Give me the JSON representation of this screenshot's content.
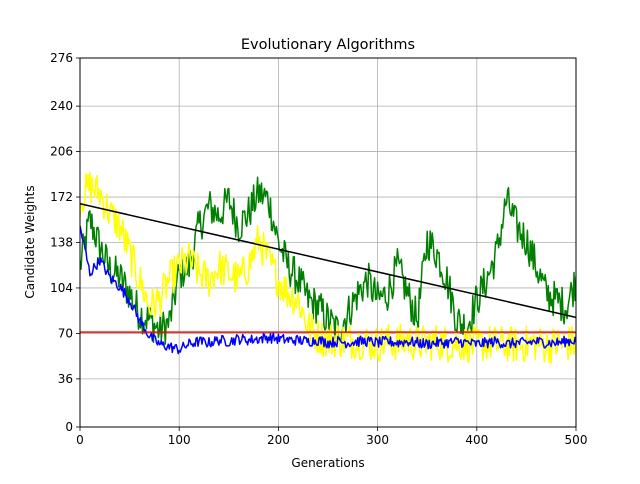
{
  "chart_data": {
    "type": "line",
    "title": "Evolutionary Algorithms",
    "xlabel": "Generations",
    "ylabel": "Candidate Weights",
    "xlim": [
      0,
      500
    ],
    "ylim": [
      0,
      276
    ],
    "xticks": [
      0,
      100,
      200,
      300,
      400,
      500
    ],
    "yticks": [
      0,
      36,
      70,
      104,
      138,
      172,
      206,
      240,
      276
    ],
    "grid": true,
    "series": [
      {
        "color": "#008000",
        "kind": "noisy",
        "x": [
          0,
          10,
          20,
          30,
          40,
          50,
          60,
          70,
          80,
          90,
          100,
          110,
          120,
          130,
          140,
          150,
          160,
          170,
          180,
          190,
          200,
          210,
          220,
          230,
          240,
          250,
          260,
          270,
          280,
          290,
          300,
          310,
          320,
          330,
          340,
          350,
          360,
          370,
          380,
          390,
          400,
          410,
          420,
          430,
          440,
          450,
          460,
          470,
          480,
          490,
          500
        ],
        "y": [
          120,
          155,
          135,
          118,
          112,
          100,
          85,
          80,
          72,
          78,
          115,
          120,
          150,
          165,
          158,
          170,
          150,
          160,
          175,
          170,
          138,
          120,
          110,
          95,
          90,
          80,
          72,
          85,
          100,
          110,
          95,
          100,
          120,
          100,
          80,
          140,
          130,
          110,
          80,
          75,
          95,
          110,
          130,
          170,
          150,
          140,
          120,
          100,
          95,
          90,
          110
        ]
      },
      {
        "color": "#ffff00",
        "kind": "noisy",
        "x": [
          0,
          10,
          20,
          30,
          40,
          50,
          60,
          70,
          80,
          90,
          100,
          110,
          120,
          130,
          140,
          150,
          160,
          170,
          180,
          190,
          200,
          210,
          220,
          230,
          240,
          250,
          260,
          270,
          280,
          290,
          300,
          310,
          320,
          330,
          340,
          350,
          360,
          370,
          380,
          390,
          400,
          410,
          420,
          430,
          440,
          450,
          460,
          470,
          480,
          490,
          500
        ],
        "y": [
          170,
          180,
          175,
          160,
          150,
          130,
          110,
          90,
          95,
          110,
          120,
          125,
          115,
          110,
          120,
          115,
          110,
          120,
          140,
          125,
          110,
          100,
          95,
          75,
          68,
          65,
          66,
          64,
          65,
          63,
          62,
          64,
          63,
          65,
          62,
          63,
          64,
          62,
          63,
          62,
          61,
          63,
          62,
          62,
          61,
          62,
          63,
          61,
          62,
          62,
          63
        ]
      },
      {
        "color": "#0000ff",
        "kind": "noisy",
        "x": [
          0,
          10,
          20,
          30,
          40,
          50,
          60,
          70,
          80,
          90,
          100,
          110,
          120,
          130,
          140,
          150,
          160,
          170,
          180,
          190,
          200,
          210,
          220,
          230,
          240,
          250,
          260,
          270,
          280,
          290,
          300,
          310,
          320,
          330,
          340,
          350,
          360,
          370,
          380,
          390,
          400,
          410,
          420,
          430,
          440,
          450,
          460,
          470,
          480,
          490,
          500
        ],
        "y": [
          150,
          115,
          125,
          112,
          105,
          95,
          80,
          68,
          62,
          60,
          58,
          62,
          64,
          63,
          65,
          64,
          66,
          65,
          66,
          67,
          66,
          65,
          65,
          64,
          65,
          63,
          64,
          63,
          64,
          64,
          63,
          64,
          63,
          64,
          63,
          62,
          63,
          63,
          64,
          63,
          62,
          63,
          64,
          62,
          63,
          63,
          64,
          63,
          63,
          64,
          65
        ]
      },
      {
        "color": "#ff0000",
        "kind": "straight",
        "x": [
          0,
          500
        ],
        "y": [
          71,
          71
        ]
      },
      {
        "color": "#000000",
        "kind": "straight",
        "x": [
          0,
          500
        ],
        "y": [
          167,
          82
        ]
      }
    ]
  }
}
